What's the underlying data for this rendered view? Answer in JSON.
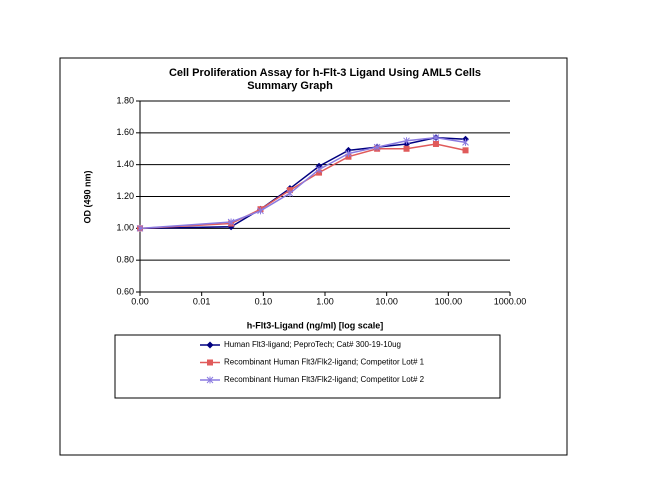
{
  "chart_data": {
    "type": "line",
    "title": "Cell Proliferation Assay for h-Flt-3 Ligand Using AML5 Cells",
    "subtitle": "Summary Graph",
    "x_label": "h-Flt3-Ligand (ng/ml) [log scale]",
    "y_label": "OD (490 nm)",
    "xscale": "log",
    "x": [
      0.001,
      0.03,
      0.09,
      0.27,
      0.8,
      2.4,
      7,
      21,
      63,
      190
    ],
    "series": [
      {
        "name": "Human Flt3-ligand; PeproTech; Cat# 300-19-10ug",
        "color": "#000080",
        "marker": "diamond",
        "values": [
          1.0,
          1.01,
          1.12,
          1.25,
          1.39,
          1.49,
          1.51,
          1.53,
          1.57,
          1.56
        ]
      },
      {
        "name": "Recombinant Human Flt3/Flk2-ligand; Competitor Lot# 1",
        "color": "#e05a5a",
        "marker": "square",
        "values": [
          1.0,
          1.03,
          1.12,
          1.24,
          1.35,
          1.45,
          1.5,
          1.5,
          1.53,
          1.49
        ]
      },
      {
        "name": "Recombinant Human Flt3/Flk2-ligand; Competitor Lot# 2",
        "color": "#8a7ae0",
        "marker": "x",
        "values": [
          1.0,
          1.04,
          1.11,
          1.22,
          1.37,
          1.47,
          1.51,
          1.55,
          1.57,
          1.54
        ]
      }
    ],
    "xlim": [
      0.001,
      1000
    ],
    "xticks": [
      {
        "value": 0.001,
        "label": "0.00"
      },
      {
        "value": 0.01,
        "label": "0.01"
      },
      {
        "value": 0.1,
        "label": "0.10"
      },
      {
        "value": 1,
        "label": "1.00"
      },
      {
        "value": 10,
        "label": "10.00"
      },
      {
        "value": 100,
        "label": "100.00"
      },
      {
        "value": 1000,
        "label": "1000.00"
      }
    ],
    "ylim": [
      0.6,
      1.8
    ],
    "yticks": [
      {
        "value": 0.6,
        "label": "0.60"
      },
      {
        "value": 0.8,
        "label": "0.80"
      },
      {
        "value": 1.0,
        "label": "1.00"
      },
      {
        "value": 1.2,
        "label": "1.20"
      },
      {
        "value": 1.4,
        "label": "1.40"
      },
      {
        "value": 1.6,
        "label": "1.60"
      },
      {
        "value": 1.8,
        "label": "1.80"
      }
    ],
    "grid": true,
    "legend": "bottom"
  }
}
